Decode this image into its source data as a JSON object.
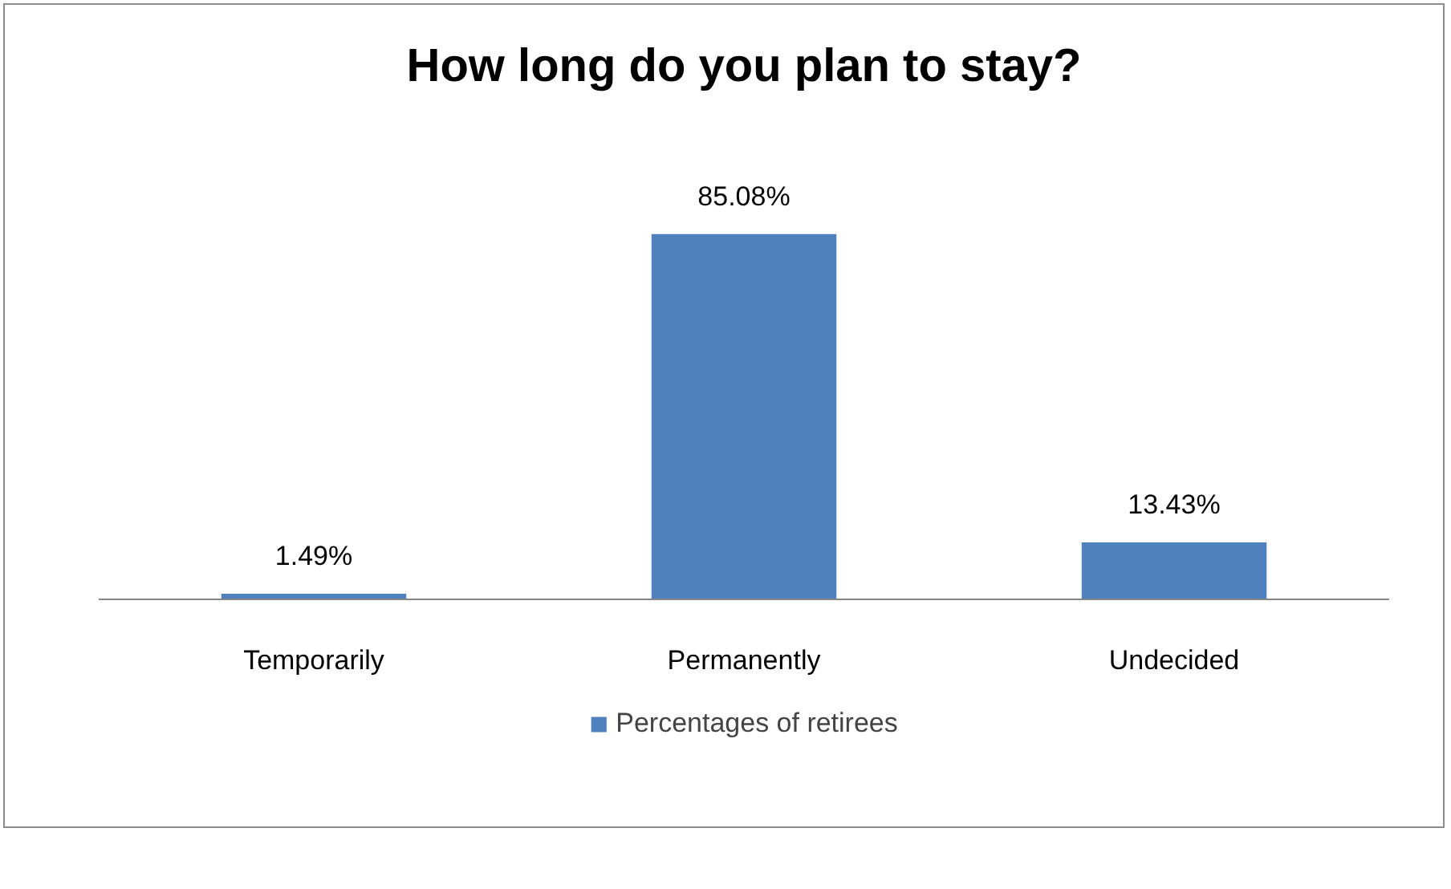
{
  "chart_data": {
    "type": "bar",
    "title": "How long do you plan to stay?",
    "categories": [
      "Temporarily",
      "Permanently",
      "Undecided"
    ],
    "series": [
      {
        "name": "Percentages of retirees",
        "color": "#4f81bd",
        "values": [
          1.49,
          85.08,
          13.43
        ],
        "value_labels": [
          "1.49%",
          "85.08%",
          "13.43%"
        ]
      }
    ],
    "legend": "bottom"
  }
}
